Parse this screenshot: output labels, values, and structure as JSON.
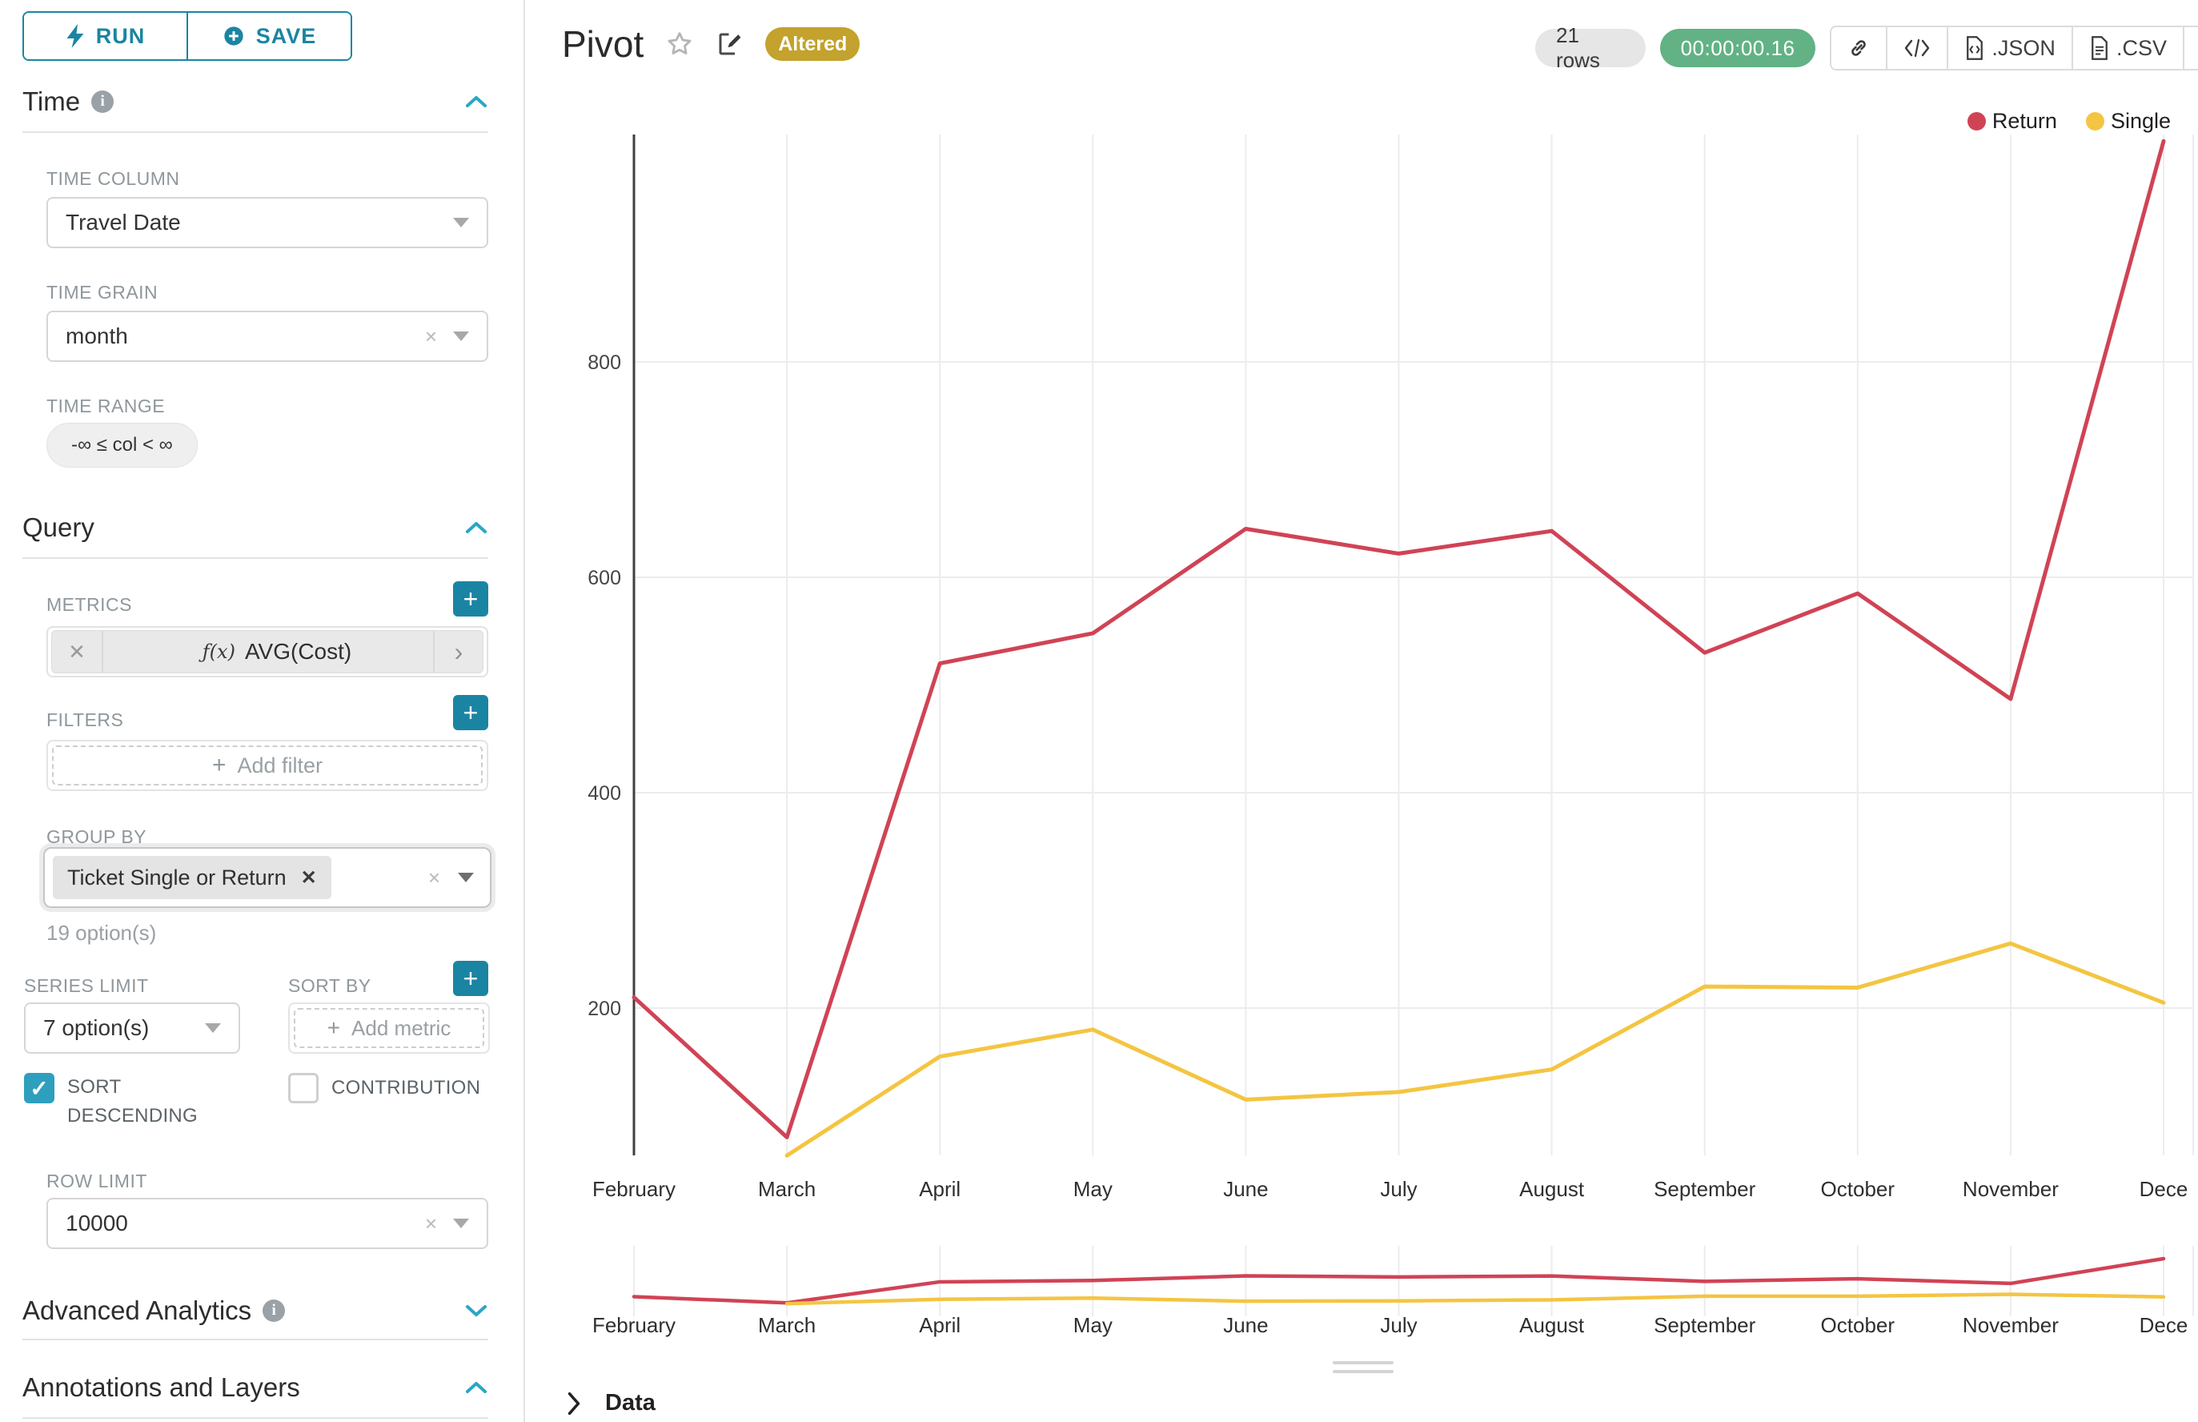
{
  "sidebar": {
    "run": "RUN",
    "save": "SAVE",
    "time_section": "Time",
    "query_section": "Query",
    "advanced_section": "Advanced Analytics",
    "annotations_section": "Annotations and Layers",
    "time_column_label": "TIME COLUMN",
    "time_column_value": "Travel Date",
    "time_grain_label": "TIME GRAIN",
    "time_grain_value": "month",
    "time_range_label": "TIME RANGE",
    "time_range_value": "-∞ ≤ col < ∞",
    "metrics_label": "METRICS",
    "metric_fx": "ƒ(x)",
    "metric_value": "AVG(Cost)",
    "filters_label": "FILTERS",
    "filters_placeholder": "Add filter",
    "group_by_label": "GROUP BY",
    "group_by_tag": "Ticket Single or Return",
    "group_by_hint": "19 option(s)",
    "series_limit_label": "SERIES LIMIT",
    "series_limit_value": "7 option(s)",
    "sort_by_label": "SORT BY",
    "sort_by_placeholder": "Add metric",
    "sort_descending_label": "SORT DESCENDING",
    "sort_descending_checked": true,
    "contribution_label": "CONTRIBUTION",
    "contribution_checked": false,
    "row_limit_label": "ROW LIMIT",
    "row_limit_value": "10000"
  },
  "header": {
    "title": "Pivot",
    "badge": "Altered",
    "rows_badge": "21 rows",
    "timer": "00:00:00.16",
    "export_json": ".JSON",
    "export_csv": ".CSV"
  },
  "footer": {
    "data_label": "Data"
  },
  "chart_data": {
    "type": "line",
    "title": "",
    "xlabel": "",
    "ylabel": "",
    "x": [
      "February",
      "March",
      "April",
      "May",
      "June",
      "July",
      "August",
      "September",
      "October",
      "November",
      "December"
    ],
    "xtick_labels": [
      "February",
      "March",
      "April",
      "May",
      "June",
      "July",
      "August",
      "September",
      "October",
      "November",
      "Dece"
    ],
    "yticks": [
      200,
      400,
      600,
      800
    ],
    "ylim": [
      0,
      1060
    ],
    "grid": true,
    "legend_position": "top-right",
    "series": [
      {
        "name": "Return",
        "color": "#d04355",
        "values": [
          210,
          80,
          520,
          548,
          645,
          622,
          643,
          530,
          585,
          487,
          1005
        ]
      },
      {
        "name": "Single",
        "color": "#f4c542",
        "values": [
          null,
          63,
          155,
          180,
          115,
          122,
          143,
          220,
          219,
          260,
          205
        ]
      }
    ],
    "range_selector": true
  }
}
